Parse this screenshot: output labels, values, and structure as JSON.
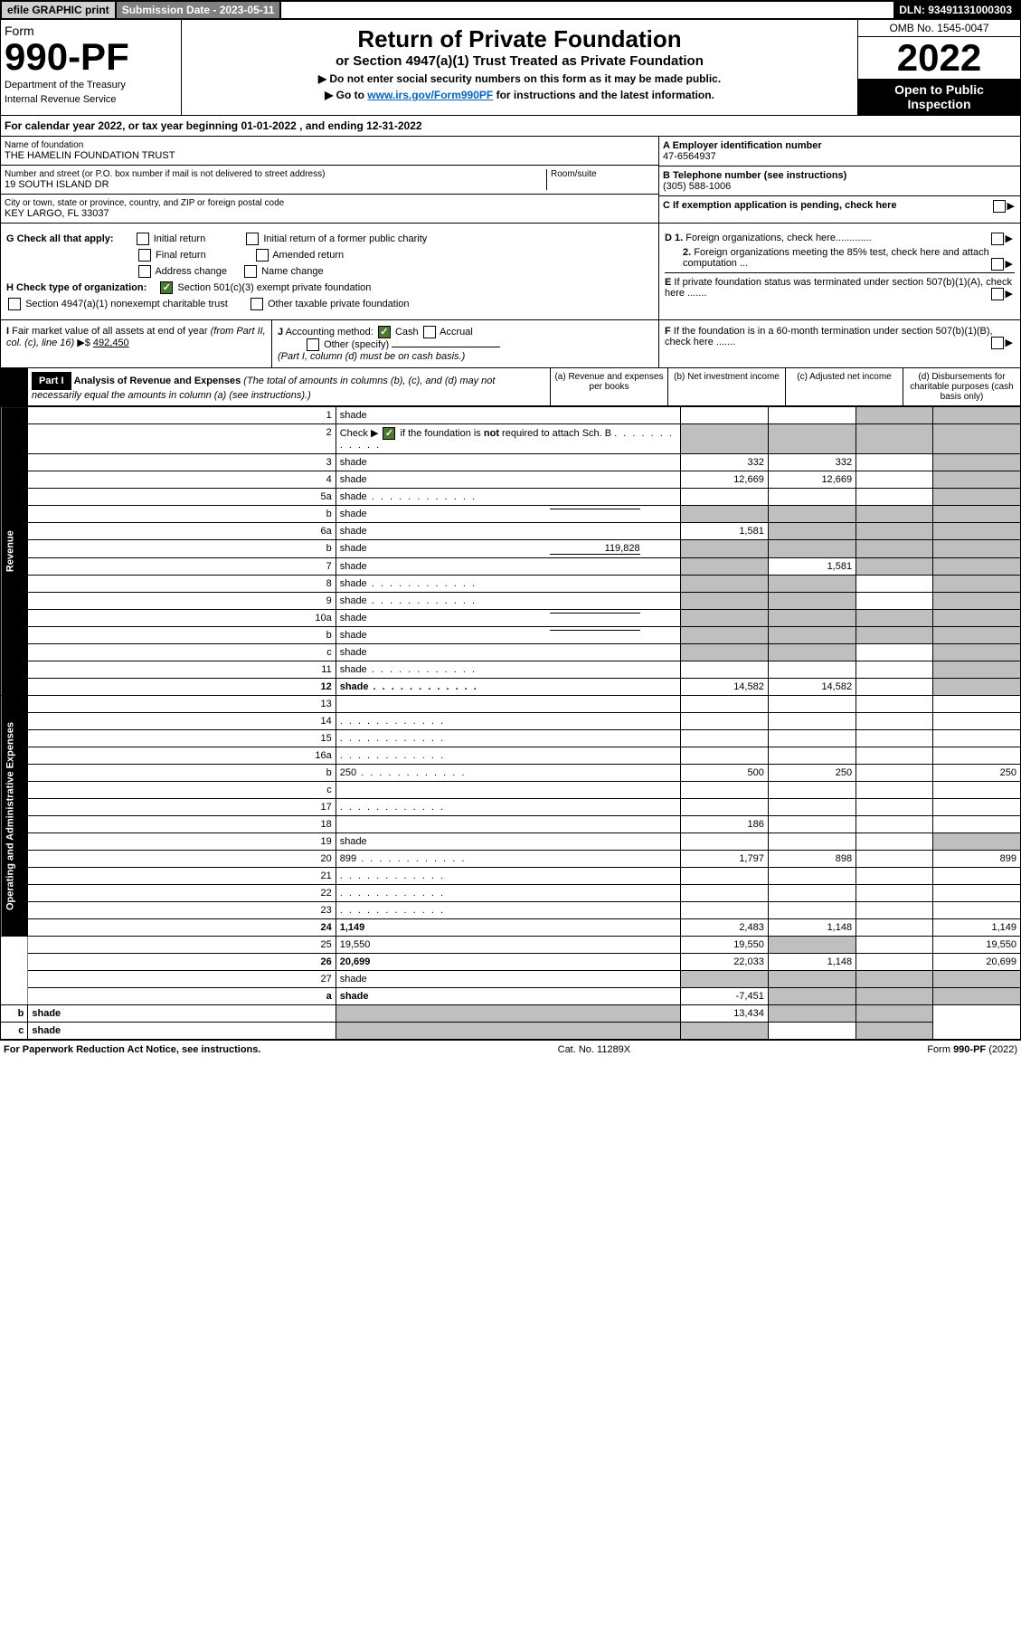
{
  "topbar": {
    "efile": "efile GRAPHIC print",
    "subdate_label": "Submission Date - 2023-05-11",
    "dln": "DLN: 93491131000303"
  },
  "header": {
    "form_label": "Form",
    "form_number": "990-PF",
    "dept": "Department of the Treasury",
    "irs": "Internal Revenue Service",
    "title": "Return of Private Foundation",
    "subtitle": "or Section 4947(a)(1) Trust Treated as Private Foundation",
    "instr1": "▶ Do not enter social security numbers on this form as it may be made public.",
    "instr2_pre": "▶ Go to ",
    "instr2_link": "www.irs.gov/Form990PF",
    "instr2_post": " for instructions and the latest information.",
    "omb": "OMB No. 1545-0047",
    "year": "2022",
    "inspection": "Open to Public Inspection"
  },
  "calyear": "For calendar year 2022, or tax year beginning 01-01-2022          , and ending 12-31-2022",
  "info": {
    "name_label": "Name of foundation",
    "name": "THE HAMELIN FOUNDATION TRUST",
    "addr_label": "Number and street (or P.O. box number if mail is not delivered to street address)",
    "room_label": "Room/suite",
    "addr": "19 SOUTH ISLAND DR",
    "city_label": "City or town, state or province, country, and ZIP or foreign postal code",
    "city": "KEY LARGO, FL  33037",
    "ein_label": "A Employer identification number",
    "ein": "47-6564937",
    "tel_label": "B Telephone number (see instructions)",
    "tel": "(305) 588-1006",
    "c_label": "C If exemption application is pending, check here"
  },
  "checks": {
    "g_label": "G Check all that apply:",
    "g_opts": [
      "Initial return",
      "Final return",
      "Address change",
      "Initial return of a former public charity",
      "Amended return",
      "Name change"
    ],
    "h_label": "H Check type of organization:",
    "h1": "Section 501(c)(3) exempt private foundation",
    "h2": "Section 4947(a)(1) nonexempt charitable trust",
    "h3": "Other taxable private foundation",
    "d1": "D 1. Foreign organizations, check here.............",
    "d2": "2. Foreign organizations meeting the 85% test, check here and attach computation ...",
    "e": "E If private foundation status was terminated under section 507(b)(1)(A), check here .......",
    "f": "F If the foundation is in a 60-month termination under section 507(b)(1)(B), check here ......."
  },
  "sub": {
    "i_label": "I Fair market value of all assets at end of year (from Part II, col. (c), line 16) ▶$",
    "i_val": "492,450",
    "j_label": "J Accounting method:",
    "j_cash": "Cash",
    "j_accrual": "Accrual",
    "j_other": "Other (specify)",
    "j_note": "(Part I, column (d) must be on cash basis.)"
  },
  "part1": {
    "label": "Part I",
    "title": "Analysis of Revenue and Expenses",
    "note": "(The total of amounts in columns (b), (c), and (d) may not necessarily equal the amounts in column (a) (see instructions).)",
    "col_a": "(a) Revenue and expenses per books",
    "col_b": "(b) Net investment income",
    "col_c": "(c) Adjusted net income",
    "col_d": "(d) Disbursements for charitable purposes (cash basis only)"
  },
  "sides": {
    "rev": "Revenue",
    "ops": "Operating and Administrative Expenses"
  },
  "rows": [
    {
      "n": "1",
      "d": "shade",
      "a": "",
      "b": "",
      "c": "shade"
    },
    {
      "n": "2",
      "d": "shade",
      "a": "shade",
      "b": "shade",
      "c": "shade",
      "bold_not": true
    },
    {
      "n": "3",
      "d": "shade",
      "a": "332",
      "b": "332",
      "c": ""
    },
    {
      "n": "4",
      "d": "shade",
      "a": "12,669",
      "b": "12,669",
      "c": ""
    },
    {
      "n": "5a",
      "d": "shade",
      "a": "",
      "b": "",
      "c": "",
      "dots": true
    },
    {
      "n": "b",
      "d": "shade",
      "a": "shade",
      "b": "shade",
      "c": "shade",
      "inline": true
    },
    {
      "n": "6a",
      "d": "shade",
      "a": "1,581",
      "b": "shade",
      "c": "shade"
    },
    {
      "n": "b",
      "d": "shade",
      "a": "shade",
      "b": "shade",
      "c": "shade",
      "inline_val": "119,828"
    },
    {
      "n": "7",
      "d": "shade",
      "a": "shade",
      "b": "1,581",
      "c": "shade"
    },
    {
      "n": "8",
      "d": "shade",
      "a": "shade",
      "b": "shade",
      "c": "",
      "dots": true
    },
    {
      "n": "9",
      "d": "shade",
      "a": "shade",
      "b": "shade",
      "c": "",
      "dots": true
    },
    {
      "n": "10a",
      "d": "shade",
      "a": "shade",
      "b": "shade",
      "c": "shade",
      "inline": true
    },
    {
      "n": "b",
      "d": "shade",
      "a": "shade",
      "b": "shade",
      "c": "shade",
      "inline": true
    },
    {
      "n": "c",
      "d": "shade",
      "a": "shade",
      "b": "shade",
      "c": ""
    },
    {
      "n": "11",
      "d": "shade",
      "a": "",
      "b": "",
      "c": "",
      "dots": true
    },
    {
      "n": "12",
      "d": "shade",
      "a": "14,582",
      "b": "14,582",
      "c": "",
      "bold": true,
      "dots": true
    },
    {
      "n": "13",
      "d": "",
      "a": "",
      "b": "",
      "c": ""
    },
    {
      "n": "14",
      "d": "",
      "a": "",
      "b": "",
      "c": "",
      "dots": true
    },
    {
      "n": "15",
      "d": "",
      "a": "",
      "b": "",
      "c": "",
      "dots": true
    },
    {
      "n": "16a",
      "d": "",
      "a": "",
      "b": "",
      "c": "",
      "dots": true
    },
    {
      "n": "b",
      "d": "250",
      "a": "500",
      "b": "250",
      "c": "",
      "dots": true
    },
    {
      "n": "c",
      "d": "",
      "a": "",
      "b": "",
      "c": ""
    },
    {
      "n": "17",
      "d": "",
      "a": "",
      "b": "",
      "c": "",
      "dots": true
    },
    {
      "n": "18",
      "d": "",
      "a": "186",
      "b": "",
      "c": ""
    },
    {
      "n": "19",
      "d": "shade",
      "a": "",
      "b": "",
      "c": ""
    },
    {
      "n": "20",
      "d": "899",
      "a": "1,797",
      "b": "898",
      "c": "",
      "dots": true
    },
    {
      "n": "21",
      "d": "",
      "a": "",
      "b": "",
      "c": "",
      "dots": true
    },
    {
      "n": "22",
      "d": "",
      "a": "",
      "b": "",
      "c": "",
      "dots": true
    },
    {
      "n": "23",
      "d": "",
      "a": "",
      "b": "",
      "c": "",
      "dots": true
    },
    {
      "n": "24",
      "d": "1,149",
      "a": "2,483",
      "b": "1,148",
      "c": "",
      "bold": true
    },
    {
      "n": "25",
      "d": "19,550",
      "a": "19,550",
      "b": "shade",
      "c": ""
    },
    {
      "n": "26",
      "d": "20,699",
      "a": "22,033",
      "b": "1,148",
      "c": "",
      "bold": true
    },
    {
      "n": "27",
      "d": "shade",
      "a": "shade",
      "b": "shade",
      "c": "shade"
    },
    {
      "n": "a",
      "d": "shade",
      "a": "-7,451",
      "b": "shade",
      "c": "shade",
      "bold": true
    },
    {
      "n": "b",
      "d": "shade",
      "a": "shade",
      "b": "13,434",
      "c": "shade",
      "bold": true
    },
    {
      "n": "c",
      "d": "shade",
      "a": "shade",
      "b": "shade",
      "c": "",
      "bold": true
    }
  ],
  "footer": {
    "left": "For Paperwork Reduction Act Notice, see instructions.",
    "mid": "Cat. No. 11289X",
    "right": "Form 990-PF (2022)"
  }
}
